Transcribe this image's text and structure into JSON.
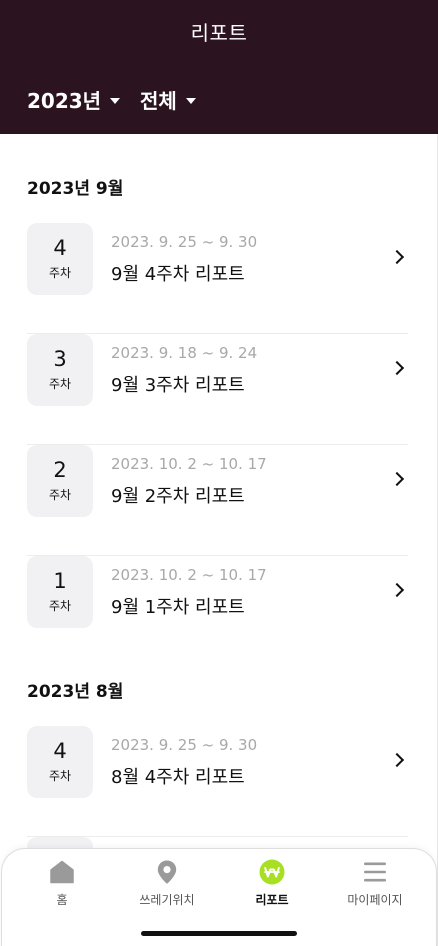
{
  "header": {
    "title": "리포트",
    "year_filter": "2023년",
    "scope_filter": "전체"
  },
  "sections": [
    {
      "title": "2023년 9월",
      "weeks": [
        {
          "num": "4",
          "unit": "주차",
          "range": "2023. 9. 25 ~ 9. 30",
          "title": "9월 4주차 리포트"
        },
        {
          "num": "3",
          "unit": "주차",
          "range": "2023. 9. 18 ~ 9. 24",
          "title": "9월 3주차 리포트"
        },
        {
          "num": "2",
          "unit": "주차",
          "range": "2023. 10. 2 ~ 10. 17",
          "title": "9월 2주차 리포트"
        },
        {
          "num": "1",
          "unit": "주차",
          "range": "2023. 10. 2 ~ 10. 17",
          "title": "9월 1주차 리포트"
        }
      ]
    },
    {
      "title": "2023년 8월",
      "weeks": [
        {
          "num": "4",
          "unit": "주차",
          "range": "2023. 9. 25 ~ 9. 30",
          "title": "8월 4주차 리포트"
        },
        {
          "num": "",
          "unit": "",
          "range": "",
          "title": ""
        }
      ]
    }
  ],
  "tabbar": {
    "items": [
      {
        "label": "홈",
        "icon": "home-icon"
      },
      {
        "label": "쓰레기위치",
        "icon": "location-pin-icon"
      },
      {
        "label": "리포트",
        "icon": "won-coin-icon"
      },
      {
        "label": "마이페이지",
        "icon": "menu-icon"
      }
    ],
    "active_index": 2
  },
  "colors": {
    "header_bg": "#2b1320",
    "badge_bg": "#f1f1f4",
    "active_tab": "#a7e023",
    "inactive_icon": "#9a9a9a"
  }
}
